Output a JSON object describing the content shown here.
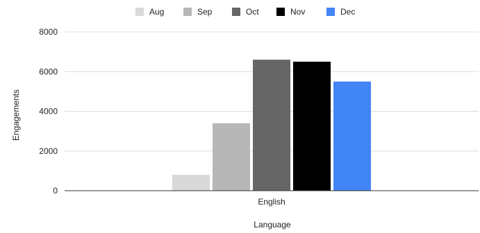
{
  "chart_data": {
    "type": "bar",
    "title": "",
    "xlabel": "Language",
    "ylabel": "Engagements",
    "categories": [
      "English"
    ],
    "series": [
      {
        "name": "Aug",
        "values": [
          800
        ],
        "color": "#d9d9d9"
      },
      {
        "name": "Sep",
        "values": [
          3400
        ],
        "color": "#b7b7b7"
      },
      {
        "name": "Oct",
        "values": [
          6600
        ],
        "color": "#666666"
      },
      {
        "name": "Nov",
        "values": [
          6500
        ],
        "color": "#000000"
      },
      {
        "name": "Dec",
        "values": [
          5500
        ],
        "color": "#4285f4"
      }
    ],
    "ylim": [
      0,
      8000
    ],
    "yticks": [
      "0",
      "2000",
      "4000",
      "6000",
      "8000"
    ],
    "grid": true,
    "legend_position": "top"
  }
}
